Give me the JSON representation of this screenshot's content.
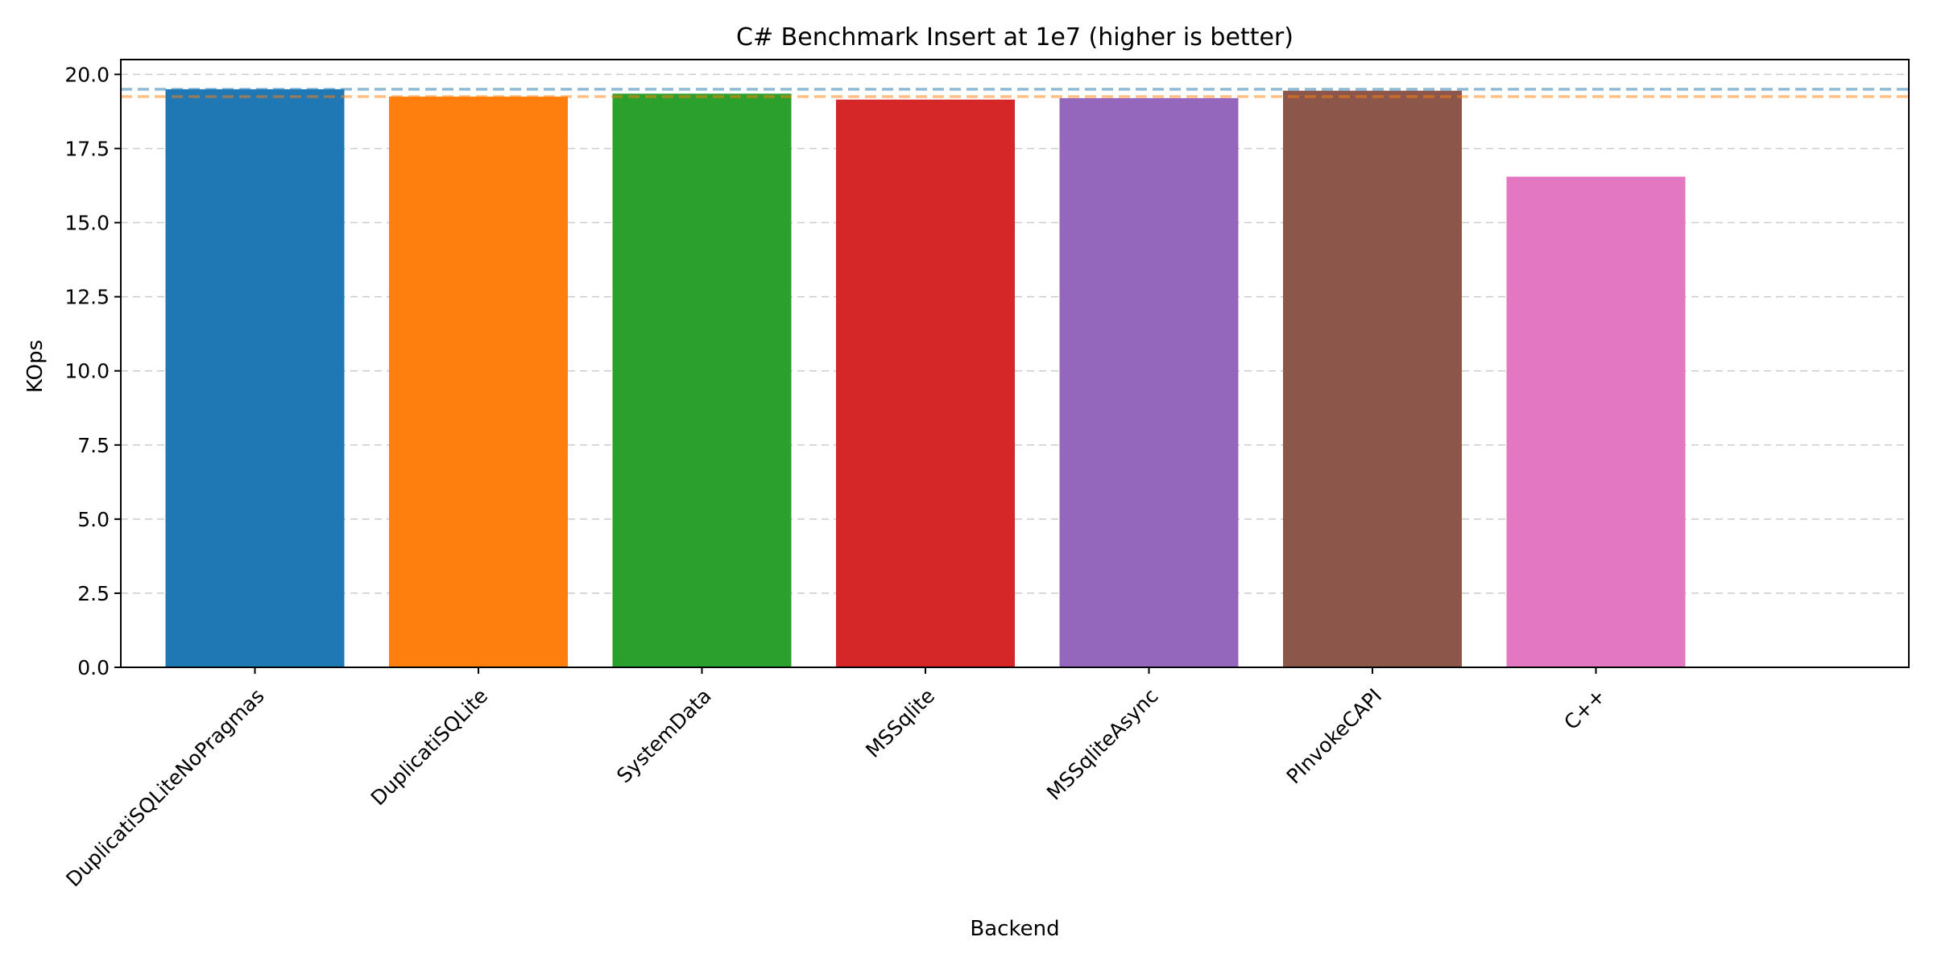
{
  "chart_data": {
    "type": "bar",
    "title": "C# Benchmark Insert at 1e7 (higher is better)",
    "xlabel": "Backend",
    "ylabel": "KOps",
    "categories": [
      "DuplicatiSQLiteNoPragmas",
      "DuplicatiSQLite",
      "SystemData",
      "MSSqlite",
      "MSSqliteAsync",
      "PInvokeCAPI",
      "C++"
    ],
    "values": [
      19.5,
      19.25,
      19.35,
      19.15,
      19.2,
      19.45,
      16.55
    ],
    "colors": [
      "#1f77b4",
      "#ff7f0e",
      "#2ca02c",
      "#d62728",
      "#9467bd",
      "#8c564b",
      "#e377c2"
    ],
    "ylim": [
      0,
      20.5
    ],
    "yticks": [
      "0.0",
      "2.5",
      "5.0",
      "7.5",
      "10.0",
      "12.5",
      "15.0",
      "17.5",
      "20.0"
    ],
    "grid": true,
    "reference_lines": [
      {
        "value": 19.5,
        "color": "#1f77b4"
      },
      {
        "value": 19.25,
        "color": "#ff7f0e"
      }
    ]
  }
}
